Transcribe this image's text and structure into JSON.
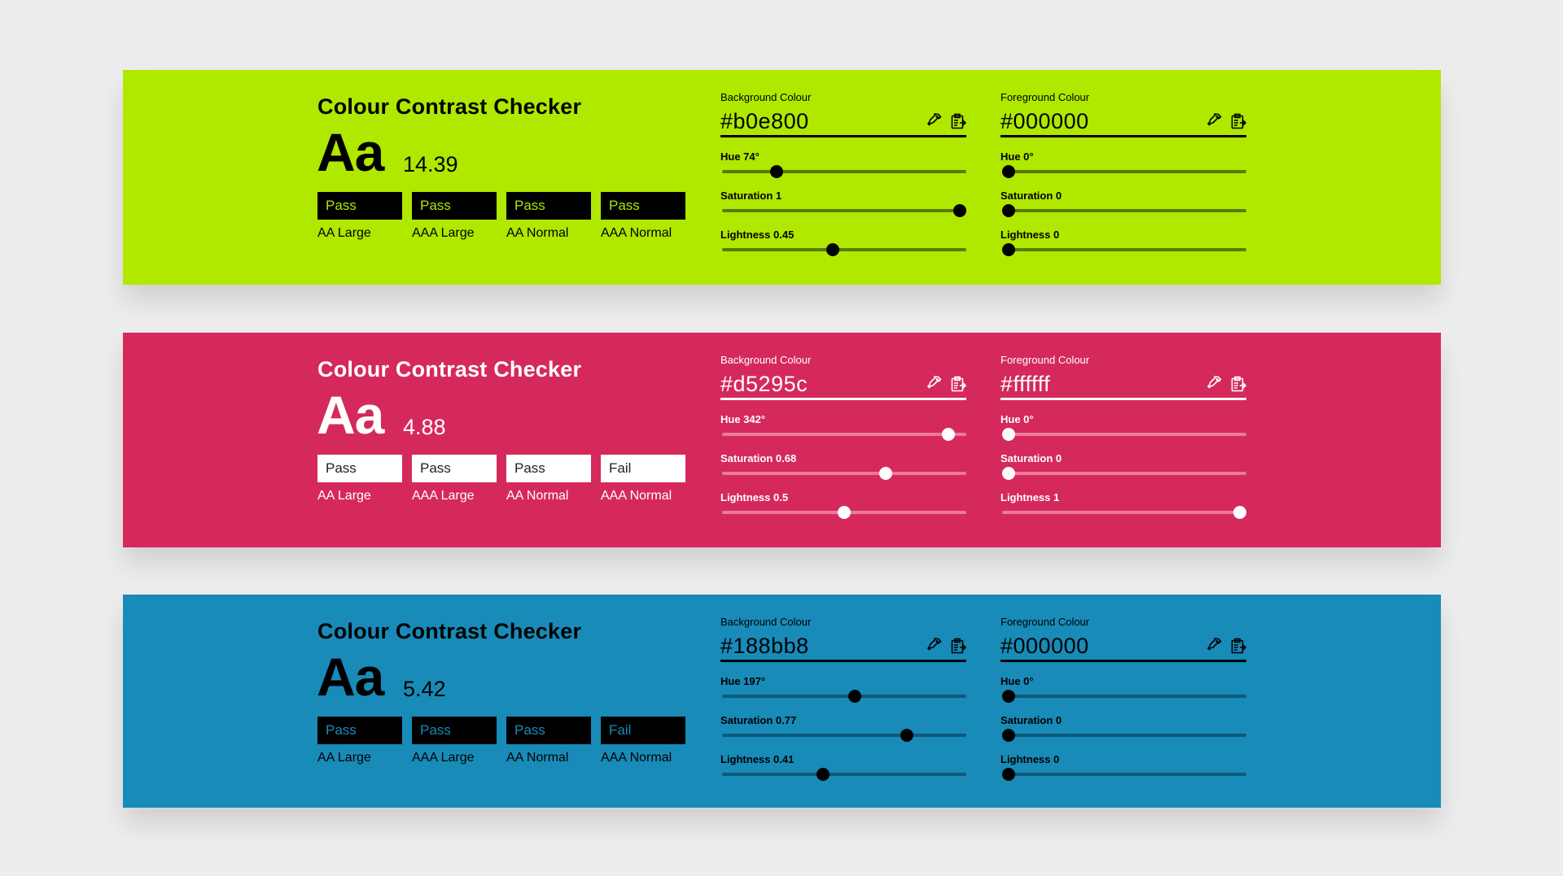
{
  "panels": [
    {
      "title": "Colour Contrast Checker",
      "sample": "Aa",
      "ratio": "14.39",
      "bg_color": "#b0e800",
      "text_color": "#000000",
      "badge_bg": "#000000",
      "badge_text": "#b0e800",
      "track_color": "#5c7a00",
      "thumb_color": "#000000",
      "badges": [
        {
          "result": "Pass",
          "label": "AA Large"
        },
        {
          "result": "Pass",
          "label": "AAA Large"
        },
        {
          "result": "Pass",
          "label": "AA Normal"
        },
        {
          "result": "Pass",
          "label": "AAA Normal"
        }
      ],
      "background": {
        "label": "Background Colour",
        "hex": "#b0e800",
        "sliders": [
          {
            "label": "Hue 74°",
            "value": 0.206
          },
          {
            "label": "Saturation 1",
            "value": 1
          },
          {
            "label": "Lightness 0.45",
            "value": 0.45
          }
        ]
      },
      "foreground": {
        "label": "Foreground Colour",
        "hex": "#000000",
        "sliders": [
          {
            "label": "Hue 0°",
            "value": 0
          },
          {
            "label": "Saturation 0",
            "value": 0
          },
          {
            "label": "Lightness 0",
            "value": 0
          }
        ]
      }
    },
    {
      "title": "Colour Contrast Checker",
      "sample": "Aa",
      "ratio": "4.88",
      "bg_color": "#d5295c",
      "text_color": "#ffffff",
      "badge_bg": "#ffffff",
      "badge_text": "#222222",
      "track_color": "#ec7a9c",
      "thumb_color": "#ffffff",
      "badges": [
        {
          "result": "Pass",
          "label": "AA Large"
        },
        {
          "result": "Pass",
          "label": "AAA Large"
        },
        {
          "result": "Pass",
          "label": "AA Normal"
        },
        {
          "result": "Fail",
          "label": "AAA Normal"
        }
      ],
      "background": {
        "label": "Background Colour",
        "hex": "#d5295c",
        "sliders": [
          {
            "label": "Hue 342°",
            "value": 0.95
          },
          {
            "label": "Saturation 0.68",
            "value": 0.68
          },
          {
            "label": "Lightness 0.5",
            "value": 0.5
          }
        ]
      },
      "foreground": {
        "label": "Foreground Colour",
        "hex": "#ffffff",
        "sliders": [
          {
            "label": "Hue 0°",
            "value": 0
          },
          {
            "label": "Saturation 0",
            "value": 0
          },
          {
            "label": "Lightness 1",
            "value": 1
          }
        ]
      }
    },
    {
      "title": "Colour Contrast Checker",
      "sample": "Aa",
      "ratio": "5.42",
      "bg_color": "#188bb8",
      "text_color": "#000000",
      "badge_bg": "#000000",
      "badge_text": "#188bb8",
      "track_color": "#0e5a78",
      "thumb_color": "#000000",
      "badges": [
        {
          "result": "Pass",
          "label": "AA Large"
        },
        {
          "result": "Pass",
          "label": "AAA Large"
        },
        {
          "result": "Pass",
          "label": "AA Normal"
        },
        {
          "result": "Fail",
          "label": "AAA Normal"
        }
      ],
      "background": {
        "label": "Background Colour",
        "hex": "#188bb8",
        "sliders": [
          {
            "label": "Hue 197°",
            "value": 0.547
          },
          {
            "label": "Saturation 0.77",
            "value": 0.77
          },
          {
            "label": "Lightness 0.41",
            "value": 0.41
          }
        ]
      },
      "foreground": {
        "label": "Foreground Colour",
        "hex": "#000000",
        "sliders": [
          {
            "label": "Hue 0°",
            "value": 0
          },
          {
            "label": "Saturation 0",
            "value": 0
          },
          {
            "label": "Lightness 0",
            "value": 0
          }
        ]
      }
    }
  ]
}
